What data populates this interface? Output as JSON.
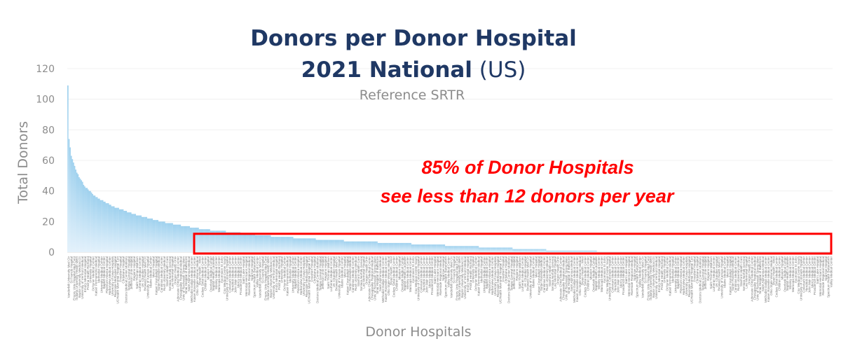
{
  "chart_data": {
    "type": "bar",
    "title_line1": "Donors per Donor Hospital",
    "title_line2_bold": "2021 National",
    "title_line2_rest": " (US)",
    "subtitle": "Reference SRTR",
    "xlabel": "Donor Hospitals",
    "ylabel": "Total Donors",
    "ylim": [
      0,
      120
    ],
    "yticks": [
      0,
      20,
      40,
      60,
      80,
      100,
      120
    ],
    "grid": true,
    "bar_color_top": "#9fd1ee",
    "bar_color_bottom": "#e3f1fb",
    "bar_count": 500,
    "bar_decay_points": [
      {
        "pos": 0,
        "value": 109
      },
      {
        "pos": 1,
        "value": 74
      },
      {
        "pos": 3,
        "value": 63
      },
      {
        "pos": 8,
        "value": 52
      },
      {
        "pos": 15,
        "value": 43
      },
      {
        "pos": 25,
        "value": 36
      },
      {
        "pos": 40,
        "value": 30
      },
      {
        "pos": 60,
        "value": 24.5
      },
      {
        "pos": 80,
        "value": 20.5
      },
      {
        "pos": 100,
        "value": 17.5
      },
      {
        "pos": 120,
        "value": 15
      },
      {
        "pos": 140,
        "value": 13.5
      },
      {
        "pos": 160,
        "value": 12
      },
      {
        "pos": 180,
        "value": 10.5
      },
      {
        "pos": 200,
        "value": 9.5
      },
      {
        "pos": 230,
        "value": 8
      },
      {
        "pos": 260,
        "value": 7
      },
      {
        "pos": 290,
        "value": 6
      },
      {
        "pos": 320,
        "value": 5
      },
      {
        "pos": 350,
        "value": 4
      },
      {
        "pos": 380,
        "value": 3
      },
      {
        "pos": 410,
        "value": 2
      },
      {
        "pos": 440,
        "value": 1
      },
      {
        "pos": 470,
        "value": 0.5
      },
      {
        "pos": 499,
        "value": 0
      }
    ],
    "category_labels": [
      "Vanderbilt University Med Ctr",
      "St Francis Hospital",
      "Emory Univ Hospital Med Cent",
      "Indiana University Health Meth",
      "Baylor University Medical Ctr",
      "University of Vermont Medical",
      "Emory Memorial Hospital",
      "Prisma Health Richland",
      "University Hospital",
      "Ochsner Medical Center",
      "Kaiser Permanente Medical",
      "Methodist Hospital",
      "University Medical Center",
      "Baptist Medical Center",
      "Piedmont Atlanta Hospital",
      "Harborview Medical Center",
      "University of Iowa Hospitals",
      "Riverside Methodist Hospital",
      "UCHealth Memorial Hospital Cen",
      "Froedtert Hospital",
      "Christiana Hospital",
      "Doctors Medical Center Modesto",
      "Tampa General Hospital",
      "Jefferson Univ Hospital",
      "Regions Hospital",
      "Saint Thomas Midtown",
      "Lutheran Medical Center",
      "UK Chandler Hospital",
      "Broward Health Med Ctr",
      "University of Kansas Hospital",
      "Maine Medical Center",
      "Mercy Hospital",
      "Kaiser Foundation Hospital",
      "Sutter Roseville Medical",
      "Carolinas Medical Center",
      "Rush University Medical",
      "Stanford Health Care",
      "Sentara Norfolk General",
      "Lee Memorial Hospital",
      "Oregon Health Univ",
      "Advocate Christ Medical Center",
      "Chesapeake Regional Medical",
      "Univ of Rochester Strong Mem",
      "Sinai Hospital of Baltimore",
      "Saint Alphonsus Medical",
      "Methodist Dallas Medical Center",
      "Kaiser Roseville Medical Center",
      "Ohio State Wexner Medical",
      "Bryan Health - West",
      "Cedars Sinai Medical Center",
      "Children Medical Center",
      "Mission Hospital",
      "Overlook Medical Center",
      "Baptist Health Louisville",
      "Wesley Medical Center",
      "Maricopa Medical Center",
      "Ascension St John",
      "Cox Medical Center South",
      "University of Colorado Hospital",
      "Covenant Medical Center",
      "Hendrick Medical Center",
      "John Muir Medical Center",
      "Mercy Medical Center",
      "Providence Medical Center",
      "Saint Luke Hospital",
      "Memorial Hermann Hospital",
      "Riverside Regional Medical",
      "Sparrow Hospital",
      "Spectrum Health Butterworth",
      "Valley Medical Center"
    ],
    "annotation_line1": "85% of Donor Hospitals",
    "annotation_line2": "see less than 12 donors per year",
    "highlight_ymax": 12,
    "highlight_color": "#ff0000"
  }
}
